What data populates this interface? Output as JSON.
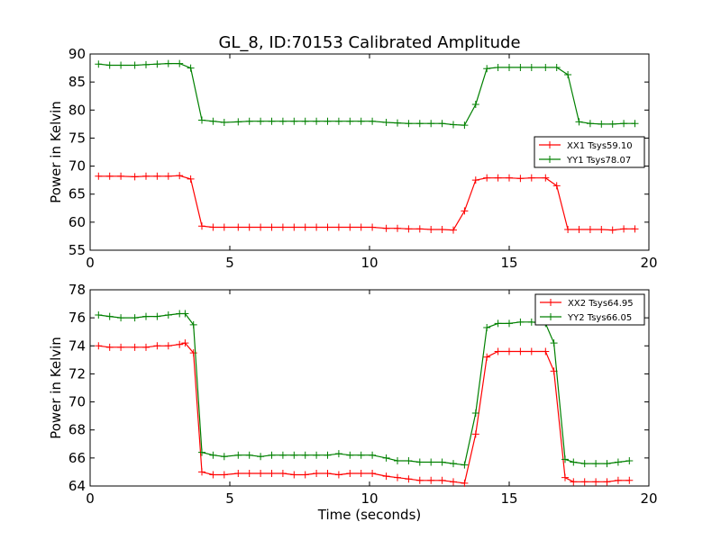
{
  "chart_data": [
    {
      "type": "line",
      "title": "GL_8, ID:70153 Calibrated Amplitude",
      "xlabel": "",
      "ylabel": "Power in Kelvin",
      "xlim": [
        0,
        20
      ],
      "ylim": [
        55,
        90
      ],
      "xticks": [
        "0",
        "5",
        "10",
        "15",
        "20"
      ],
      "yticks": [
        "55",
        "60",
        "65",
        "70",
        "75",
        "80",
        "85",
        "90"
      ],
      "legend_position": "center-right",
      "x": [
        0.3,
        0.7,
        1.1,
        1.6,
        2.0,
        2.4,
        2.8,
        3.2,
        3.6,
        4.0,
        4.4,
        4.8,
        5.3,
        5.7,
        6.1,
        6.5,
        6.9,
        7.3,
        7.7,
        8.1,
        8.5,
        8.9,
        9.3,
        9.7,
        10.1,
        10.6,
        11.0,
        11.4,
        11.8,
        12.2,
        12.6,
        13.0,
        13.4,
        13.8,
        14.2,
        14.6,
        15.0,
        15.4,
        15.8,
        16.3,
        16.7,
        17.1,
        17.5,
        17.9,
        18.3,
        18.7,
        19.1,
        19.5
      ],
      "series": [
        {
          "name": "XX1 Tsys59.10",
          "color": "#ff0000",
          "values": [
            68.2,
            68.2,
            68.2,
            68.1,
            68.2,
            68.2,
            68.2,
            68.3,
            67.7,
            59.3,
            59.1,
            59.1,
            59.1,
            59.1,
            59.1,
            59.1,
            59.1,
            59.1,
            59.1,
            59.1,
            59.1,
            59.1,
            59.1,
            59.1,
            59.1,
            58.9,
            58.9,
            58.8,
            58.8,
            58.7,
            58.7,
            58.6,
            62.0,
            67.5,
            67.9,
            67.9,
            67.9,
            67.8,
            67.9,
            67.9,
            66.5,
            58.7,
            58.7,
            58.7,
            58.7,
            58.6,
            58.8,
            58.8
          ]
        },
        {
          "name": "YY1 Tsys78.07",
          "color": "#008000",
          "values": [
            88.2,
            88.0,
            88.0,
            88.0,
            88.1,
            88.2,
            88.3,
            88.3,
            87.5,
            78.2,
            78.0,
            77.8,
            77.9,
            78.0,
            78.0,
            78.0,
            78.0,
            78.0,
            78.0,
            78.0,
            78.0,
            78.0,
            78.0,
            78.0,
            78.0,
            77.8,
            77.7,
            77.6,
            77.6,
            77.6,
            77.6,
            77.4,
            77.3,
            81.0,
            87.4,
            87.6,
            87.6,
            87.6,
            87.6,
            87.6,
            87.6,
            86.3,
            77.9,
            77.6,
            77.5,
            77.5,
            77.6,
            77.6
          ]
        }
      ]
    },
    {
      "type": "line",
      "title": "",
      "xlabel": "Time (seconds)",
      "ylabel": "Power in Kelvin",
      "xlim": [
        0,
        20
      ],
      "ylim": [
        64,
        78
      ],
      "xticks": [
        "0",
        "5",
        "10",
        "15",
        "20"
      ],
      "yticks": [
        "64",
        "66",
        "68",
        "70",
        "72",
        "74",
        "76",
        "78"
      ],
      "legend_position": "top-right",
      "x": [
        0.3,
        0.7,
        1.1,
        1.6,
        2.0,
        2.4,
        2.8,
        3.2,
        3.4,
        3.7,
        4.0,
        4.4,
        4.8,
        5.3,
        5.7,
        6.1,
        6.5,
        6.9,
        7.3,
        7.7,
        8.1,
        8.5,
        8.9,
        9.3,
        9.7,
        10.1,
        10.6,
        11.0,
        11.4,
        11.8,
        12.2,
        12.6,
        13.0,
        13.4,
        13.8,
        14.2,
        14.6,
        15.0,
        15.4,
        15.8,
        16.3,
        16.6,
        17.0,
        17.3,
        17.7,
        18.1,
        18.5,
        18.9,
        19.3
      ],
      "series": [
        {
          "name": "XX2 Tsys64.95",
          "color": "#ff0000",
          "values": [
            74.0,
            73.9,
            73.9,
            73.9,
            73.9,
            74.0,
            74.0,
            74.1,
            74.2,
            73.5,
            65.0,
            64.8,
            64.8,
            64.9,
            64.9,
            64.9,
            64.9,
            64.9,
            64.8,
            64.8,
            64.9,
            64.9,
            64.8,
            64.9,
            64.9,
            64.9,
            64.7,
            64.6,
            64.5,
            64.4,
            64.4,
            64.4,
            64.3,
            64.2,
            67.7,
            73.2,
            73.6,
            73.6,
            73.6,
            73.6,
            73.6,
            72.2,
            64.6,
            64.3,
            64.3,
            64.3,
            64.3,
            64.4,
            64.4
          ]
        },
        {
          "name": "YY2 Tsys66.05",
          "color": "#008000",
          "values": [
            76.2,
            76.1,
            76.0,
            76.0,
            76.1,
            76.1,
            76.2,
            76.3,
            76.3,
            75.5,
            66.4,
            66.2,
            66.1,
            66.2,
            66.2,
            66.1,
            66.2,
            66.2,
            66.2,
            66.2,
            66.2,
            66.2,
            66.3,
            66.2,
            66.2,
            66.2,
            66.0,
            65.8,
            65.8,
            65.7,
            65.7,
            65.7,
            65.6,
            65.5,
            69.2,
            75.3,
            75.6,
            75.6,
            75.7,
            75.7,
            75.6,
            74.2,
            65.9,
            65.7,
            65.6,
            65.6,
            65.6,
            65.7,
            65.8
          ]
        }
      ]
    }
  ]
}
